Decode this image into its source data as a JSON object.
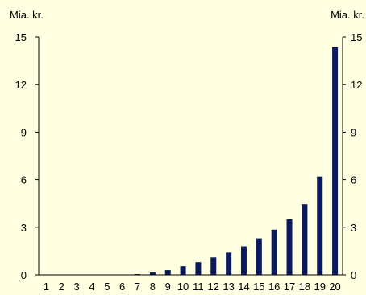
{
  "chart_data": {
    "type": "bar",
    "title": "",
    "xlabel": "",
    "ylabel_left": "Mia. kr.",
    "ylabel_right": "Mia. kr.",
    "ylim": [
      0,
      15
    ],
    "yticks": [
      0,
      3,
      6,
      9,
      12,
      15
    ],
    "grid": false,
    "legend": "none",
    "colors": {
      "bar": "#0A1A5C",
      "background": "#FFFFE1",
      "axis": "#000000"
    },
    "categories": [
      "1",
      "2",
      "3",
      "4",
      "5",
      "6",
      "7",
      "8",
      "9",
      "10",
      "11",
      "12",
      "13",
      "14",
      "15",
      "16",
      "17",
      "18",
      "19",
      "20"
    ],
    "values": [
      0.0,
      0.0,
      0.0,
      0.0,
      0.0,
      0.0,
      0.05,
      0.15,
      0.3,
      0.55,
      0.8,
      1.1,
      1.4,
      1.8,
      2.3,
      2.85,
      3.5,
      4.45,
      6.2,
      14.35
    ]
  }
}
